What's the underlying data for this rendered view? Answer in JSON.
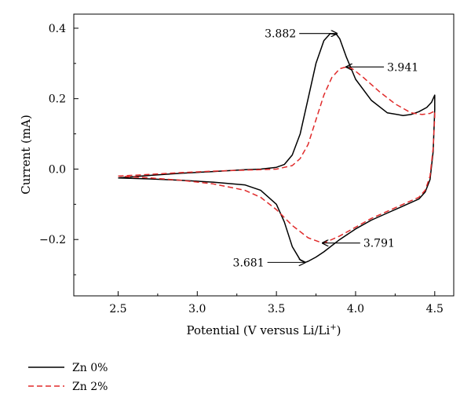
{
  "chart_data": {
    "type": "line",
    "xlabel": "Potential (V versus Li/Li",
    "xlabel_sup": "+",
    "xlabel_end": ")",
    "ylabel": "Current (mA)",
    "xlim": [
      2.22,
      4.62
    ],
    "ylim": [
      -0.36,
      0.44
    ],
    "x_ticks": [
      2.5,
      3.0,
      3.5,
      4.0,
      4.5
    ],
    "x_tick_labels": [
      "2.5",
      "3.0",
      "3.5",
      "4.0",
      "4.5"
    ],
    "y_ticks": [
      -0.2,
      0.0,
      0.2,
      0.4
    ],
    "y_tick_labels": [
      "−0.2",
      "0.0",
      "0.2",
      "0.4"
    ],
    "grid": false,
    "legend_position": "below-left",
    "series": [
      {
        "name": "Zn 0%",
        "color": "#000000",
        "dash": "solid",
        "x": [
          2.5,
          2.7,
          2.9,
          3.1,
          3.3,
          3.4,
          3.5,
          3.55,
          3.6,
          3.65,
          3.7,
          3.75,
          3.8,
          3.84,
          3.88,
          3.9,
          3.94,
          4.0,
          4.1,
          4.2,
          4.3,
          4.35,
          4.4,
          4.45,
          4.48,
          4.5,
          4.5,
          4.49,
          4.47,
          4.44,
          4.4,
          4.3,
          4.2,
          4.1,
          4.0,
          3.9,
          3.8,
          3.75,
          3.7,
          3.681,
          3.65,
          3.6,
          3.55,
          3.5,
          3.4,
          3.3,
          3.1,
          2.9,
          2.7,
          2.5
        ],
        "y": [
          -0.025,
          -0.018,
          -0.012,
          -0.007,
          -0.002,
          0.0,
          0.005,
          0.013,
          0.04,
          0.1,
          0.2,
          0.3,
          0.365,
          0.385,
          0.382,
          0.37,
          0.32,
          0.255,
          0.195,
          0.16,
          0.152,
          0.155,
          0.163,
          0.175,
          0.19,
          0.21,
          0.17,
          0.05,
          -0.03,
          -0.065,
          -0.085,
          -0.105,
          -0.125,
          -0.145,
          -0.17,
          -0.2,
          -0.235,
          -0.25,
          -0.262,
          -0.265,
          -0.258,
          -0.22,
          -0.15,
          -0.1,
          -0.06,
          -0.045,
          -0.037,
          -0.032,
          -0.028,
          -0.025
        ]
      },
      {
        "name": "Zn 2%",
        "color": "#e02a2a",
        "dash": "dashed",
        "x": [
          2.5,
          2.7,
          2.9,
          3.1,
          3.3,
          3.5,
          3.6,
          3.65,
          3.7,
          3.75,
          3.8,
          3.85,
          3.9,
          3.941,
          3.98,
          4.05,
          4.15,
          4.25,
          4.35,
          4.42,
          4.47,
          4.5,
          4.5,
          4.49,
          4.47,
          4.44,
          4.4,
          4.3,
          4.2,
          4.1,
          4.0,
          3.9,
          3.8,
          3.791,
          3.7,
          3.6,
          3.5,
          3.4,
          3.3,
          3.1,
          2.9,
          2.7,
          2.5
        ],
        "y": [
          -0.02,
          -0.015,
          -0.01,
          -0.006,
          -0.003,
          0.0,
          0.01,
          0.03,
          0.07,
          0.14,
          0.21,
          0.26,
          0.285,
          0.29,
          0.285,
          0.26,
          0.22,
          0.185,
          0.16,
          0.155,
          0.158,
          0.165,
          0.15,
          0.06,
          -0.02,
          -0.06,
          -0.08,
          -0.1,
          -0.12,
          -0.14,
          -0.165,
          -0.19,
          -0.21,
          -0.21,
          -0.195,
          -0.16,
          -0.115,
          -0.08,
          -0.06,
          -0.042,
          -0.032,
          -0.025,
          -0.02
        ]
      }
    ],
    "annotations": [
      {
        "text": "3.882",
        "x": 3.882,
        "y": 0.385,
        "label_side": "left"
      },
      {
        "text": "3.941",
        "x": 3.941,
        "y": 0.29,
        "label_side": "right"
      },
      {
        "text": "3.791",
        "x": 3.791,
        "y": -0.21,
        "label_side": "right"
      },
      {
        "text": "3.681",
        "x": 3.681,
        "y": -0.265,
        "label_side": "left"
      }
    ],
    "legend": [
      {
        "name": "Zn 0%",
        "color": "#000000",
        "dash": "solid"
      },
      {
        "name": "Zn 2%",
        "color": "#e02a2a",
        "dash": "dashed"
      }
    ]
  }
}
